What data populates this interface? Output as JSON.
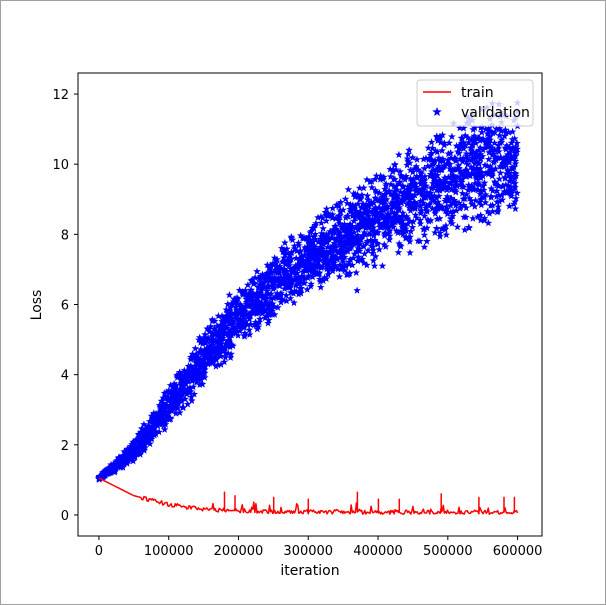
{
  "chart_data": {
    "type": "line",
    "title": "",
    "xlabel": "iteration",
    "ylabel": "Loss",
    "xlim": [
      -30000,
      635000
    ],
    "ylim": [
      -0.6,
      12.6
    ],
    "x_ticks": [
      0,
      100000,
      200000,
      300000,
      400000,
      500000,
      600000
    ],
    "y_ticks": [
      0,
      2,
      4,
      6,
      8,
      10,
      12
    ],
    "grid": false,
    "legend": {
      "placement": "top-right"
    },
    "series": [
      {
        "name": "train",
        "style": "line",
        "color": "#ff0000",
        "x": [
          0,
          10000,
          25000,
          50000,
          75000,
          100000,
          125000,
          150000,
          175000,
          200000,
          250000,
          300000,
          400000,
          500000,
          600000
        ],
        "y": [
          1.05,
          0.95,
          0.8,
          0.55,
          0.42,
          0.3,
          0.22,
          0.17,
          0.14,
          0.12,
          0.1,
          0.09,
          0.08,
          0.08,
          0.08
        ],
        "spikes": [
          {
            "x": 180000,
            "y": 0.65
          },
          {
            "x": 195000,
            "y": 0.55
          },
          {
            "x": 250000,
            "y": 0.5
          },
          {
            "x": 300000,
            "y": 0.45
          },
          {
            "x": 370000,
            "y": 0.65
          },
          {
            "x": 400000,
            "y": 0.45
          },
          {
            "x": 430000,
            "y": 0.45
          },
          {
            "x": 490000,
            "y": 0.6
          },
          {
            "x": 545000,
            "y": 0.5
          },
          {
            "x": 580000,
            "y": 0.5
          },
          {
            "x": 595000,
            "y": 0.5
          }
        ]
      },
      {
        "name": "validation",
        "style": "scatter",
        "marker": "star",
        "color": "#0000ff",
        "x": [
          0,
          25000,
          50000,
          75000,
          100000,
          125000,
          150000,
          175000,
          200000,
          250000,
          300000,
          350000,
          400000,
          450000,
          500000,
          550000,
          600000
        ],
        "y_low": [
          1.0,
          1.2,
          1.5,
          2.0,
          2.5,
          3.0,
          3.6,
          4.2,
          4.7,
          5.5,
          6.2,
          6.6,
          7.0,
          7.4,
          7.8,
          8.2,
          8.5
        ],
        "y_high": [
          1.1,
          1.6,
          2.2,
          2.9,
          3.7,
          4.5,
          5.3,
          6.0,
          6.6,
          7.6,
          8.4,
          9.2,
          9.9,
          10.6,
          11.2,
          11.8,
          12.0
        ],
        "outliers": [
          {
            "x": 370000,
            "y": 6.4
          },
          {
            "x": 395000,
            "y": 7.1
          },
          {
            "x": 470000,
            "y": 7.8
          },
          {
            "x": 530000,
            "y": 8.2
          },
          {
            "x": 600000,
            "y": 11.5
          }
        ]
      }
    ]
  }
}
